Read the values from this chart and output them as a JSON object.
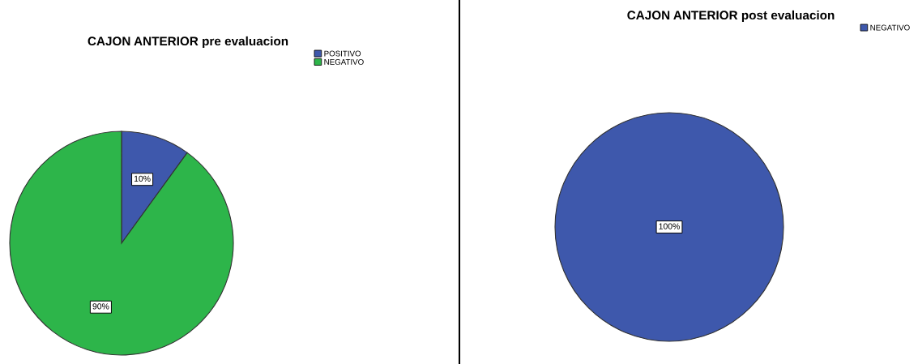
{
  "chart_data": [
    {
      "type": "pie",
      "title": "CAJON ANTERIOR pre evaluacion",
      "categories": [
        "POSITIVO",
        "NEGATIVO"
      ],
      "values": [
        10,
        90
      ],
      "colors": [
        "#3e58ac",
        "#2db54a"
      ],
      "value_labels": [
        "10%",
        "90%"
      ],
      "legend": "top right"
    },
    {
      "type": "pie",
      "title": "CAJON ANTERIOR post evaluacion",
      "categories": [
        "NEGATIVO"
      ],
      "values": [
        100
      ],
      "colors": [
        "#3e58ac"
      ],
      "value_labels": [
        "100%"
      ],
      "legend": "top right"
    }
  ]
}
